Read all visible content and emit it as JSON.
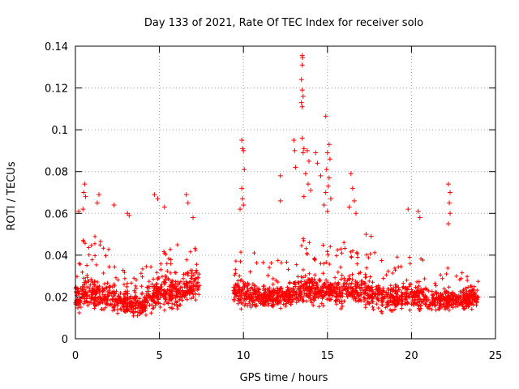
{
  "chart_data": {
    "type": "scatter",
    "title": "Day 133 of 2021, Rate Of TEC Index for receiver solo",
    "xlabel": "GPS time / hours",
    "ylabel": "ROTI / TECUs",
    "xlim": [
      0,
      25
    ],
    "ylim": [
      0,
      0.14
    ],
    "xticks": [
      0,
      5,
      10,
      15,
      20,
      25
    ],
    "yticks": [
      0,
      0.02,
      0.04,
      0.06,
      0.08,
      0.1,
      0.12,
      0.14
    ],
    "xtick_labels": [
      "0",
      "5",
      "10",
      "15",
      "20",
      "25"
    ],
    "ytick_labels": [
      "0",
      "0.02",
      "0.04",
      "0.06",
      "0.08",
      "0.1",
      "0.12",
      "0.14"
    ],
    "grid": true,
    "marker": "+",
    "color": "#ff0000",
    "data_gap_hours": [
      7.4,
      9.4
    ],
    "dense_band": {
      "description_hours": "0 to 7.4 and 9.4 to 24",
      "profile": [
        {
          "x": 0.0,
          "low": 0.008,
          "typical": 0.02,
          "high": 0.045
        },
        {
          "x": 1.0,
          "low": 0.008,
          "typical": 0.022,
          "high": 0.05
        },
        {
          "x": 2.0,
          "low": 0.007,
          "typical": 0.02,
          "high": 0.045
        },
        {
          "x": 3.0,
          "low": 0.006,
          "typical": 0.016,
          "high": 0.035
        },
        {
          "x": 4.0,
          "low": 0.005,
          "typical": 0.016,
          "high": 0.035
        },
        {
          "x": 5.0,
          "low": 0.007,
          "typical": 0.022,
          "high": 0.045
        },
        {
          "x": 6.0,
          "low": 0.008,
          "typical": 0.022,
          "high": 0.045
        },
        {
          "x": 7.3,
          "low": 0.01,
          "typical": 0.026,
          "high": 0.05
        },
        {
          "x": 9.5,
          "low": 0.01,
          "typical": 0.022,
          "high": 0.045
        },
        {
          "x": 11.0,
          "low": 0.01,
          "typical": 0.02,
          "high": 0.04
        },
        {
          "x": 12.5,
          "low": 0.01,
          "typical": 0.02,
          "high": 0.04
        },
        {
          "x": 13.5,
          "low": 0.01,
          "typical": 0.024,
          "high": 0.05
        },
        {
          "x": 15.0,
          "low": 0.01,
          "typical": 0.022,
          "high": 0.045
        },
        {
          "x": 16.5,
          "low": 0.01,
          "typical": 0.024,
          "high": 0.05
        },
        {
          "x": 18.0,
          "low": 0.006,
          "typical": 0.02,
          "high": 0.04
        },
        {
          "x": 20.0,
          "low": 0.008,
          "typical": 0.02,
          "high": 0.04
        },
        {
          "x": 22.0,
          "low": 0.008,
          "typical": 0.018,
          "high": 0.035
        },
        {
          "x": 24.0,
          "low": 0.01,
          "typical": 0.02,
          "high": 0.03
        }
      ]
    },
    "outliers": [
      {
        "x": 0.2,
        "y": 0.061
      },
      {
        "x": 0.5,
        "y": 0.07
      },
      {
        "x": 0.55,
        "y": 0.074
      },
      {
        "x": 0.6,
        "y": 0.068
      },
      {
        "x": 0.45,
        "y": 0.062
      },
      {
        "x": 1.4,
        "y": 0.069
      },
      {
        "x": 1.3,
        "y": 0.065
      },
      {
        "x": 2.3,
        "y": 0.064
      },
      {
        "x": 3.1,
        "y": 0.06
      },
      {
        "x": 3.2,
        "y": 0.059
      },
      {
        "x": 4.7,
        "y": 0.069
      },
      {
        "x": 4.9,
        "y": 0.067
      },
      {
        "x": 5.3,
        "y": 0.063
      },
      {
        "x": 6.6,
        "y": 0.069
      },
      {
        "x": 6.7,
        "y": 0.065
      },
      {
        "x": 7.0,
        "y": 0.058
      },
      {
        "x": 9.9,
        "y": 0.095
      },
      {
        "x": 9.95,
        "y": 0.091
      },
      {
        "x": 10.0,
        "y": 0.09
      },
      {
        "x": 10.05,
        "y": 0.081
      },
      {
        "x": 9.9,
        "y": 0.072
      },
      {
        "x": 9.95,
        "y": 0.067
      },
      {
        "x": 10.0,
        "y": 0.064
      },
      {
        "x": 9.8,
        "y": 0.062
      },
      {
        "x": 12.2,
        "y": 0.078
      },
      {
        "x": 12.2,
        "y": 0.066
      },
      {
        "x": 13.0,
        "y": 0.095
      },
      {
        "x": 13.05,
        "y": 0.09
      },
      {
        "x": 13.1,
        "y": 0.082
      },
      {
        "x": 13.5,
        "y": 0.1355
      },
      {
        "x": 13.52,
        "y": 0.1345
      },
      {
        "x": 13.5,
        "y": 0.131
      },
      {
        "x": 13.45,
        "y": 0.124
      },
      {
        "x": 13.5,
        "y": 0.119
      },
      {
        "x": 13.55,
        "y": 0.116
      },
      {
        "x": 13.45,
        "y": 0.113
      },
      {
        "x": 13.5,
        "y": 0.111
      },
      {
        "x": 13.5,
        "y": 0.096
      },
      {
        "x": 13.6,
        "y": 0.091
      },
      {
        "x": 13.55,
        "y": 0.089
      },
      {
        "x": 13.8,
        "y": 0.09
      },
      {
        "x": 13.9,
        "y": 0.085
      },
      {
        "x": 13.7,
        "y": 0.079
      },
      {
        "x": 13.85,
        "y": 0.074
      },
      {
        "x": 14.0,
        "y": 0.071
      },
      {
        "x": 13.6,
        "y": 0.068
      },
      {
        "x": 14.3,
        "y": 0.089
      },
      {
        "x": 14.4,
        "y": 0.084
      },
      {
        "x": 14.6,
        "y": 0.078
      },
      {
        "x": 14.9,
        "y": 0.1065
      },
      {
        "x": 15.1,
        "y": 0.093
      },
      {
        "x": 15.0,
        "y": 0.089
      },
      {
        "x": 15.15,
        "y": 0.086
      },
      {
        "x": 14.95,
        "y": 0.081
      },
      {
        "x": 15.1,
        "y": 0.077
      },
      {
        "x": 15.05,
        "y": 0.073
      },
      {
        "x": 14.9,
        "y": 0.07
      },
      {
        "x": 15.2,
        "y": 0.067
      },
      {
        "x": 14.8,
        "y": 0.064
      },
      {
        "x": 15.0,
        "y": 0.061
      },
      {
        "x": 16.4,
        "y": 0.079
      },
      {
        "x": 16.5,
        "y": 0.072
      },
      {
        "x": 16.6,
        "y": 0.066
      },
      {
        "x": 16.3,
        "y": 0.063
      },
      {
        "x": 16.7,
        "y": 0.06
      },
      {
        "x": 17.3,
        "y": 0.05
      },
      {
        "x": 17.6,
        "y": 0.049
      },
      {
        "x": 19.8,
        "y": 0.062
      },
      {
        "x": 20.4,
        "y": 0.061
      },
      {
        "x": 20.5,
        "y": 0.058
      },
      {
        "x": 22.2,
        "y": 0.074
      },
      {
        "x": 22.3,
        "y": 0.07
      },
      {
        "x": 22.25,
        "y": 0.065
      },
      {
        "x": 22.3,
        "y": 0.06
      },
      {
        "x": 22.2,
        "y": 0.055
      }
    ]
  }
}
